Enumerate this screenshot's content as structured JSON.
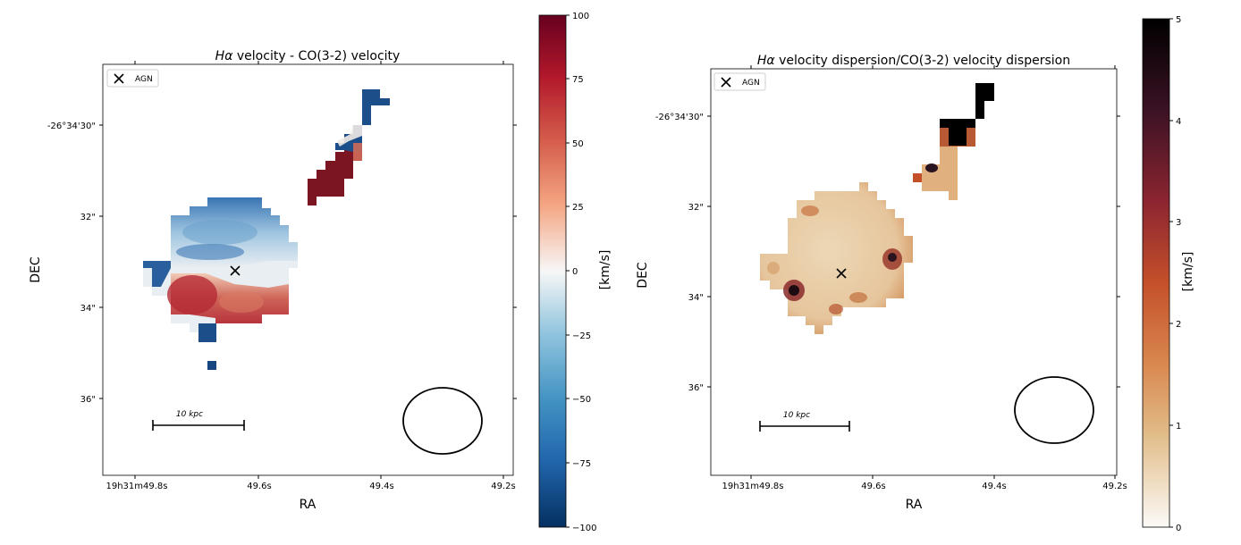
{
  "panels": [
    {
      "title": "Hα velocity - CO(3-2) velocity",
      "title_math": "Hα",
      "title_rest": " velocity - CO(3-2) velocity",
      "xlabel": "RA",
      "ylabel": "DEC",
      "xticks": [
        "19h31m49.8s",
        "49.6s",
        "49.4s",
        "49.2s"
      ],
      "yticks": [
        "-26°34'30\"",
        "32\"",
        "34\"",
        "36\""
      ],
      "legend_label": "AGN",
      "scalebar_label": "10 kpc",
      "colorbar": {
        "label": "[km/s]",
        "ticks": [
          "100",
          "75",
          "50",
          "25",
          "0",
          "−25",
          "−50",
          "−75",
          "−100"
        ],
        "colormap": "RdBu_r",
        "range": [
          -100,
          100
        ]
      }
    },
    {
      "title": "Hα velocity dispersion/CO(3-2) velocity dispersion",
      "title_math": "Hα",
      "title_rest": " velocity dispersion/CO(3-2) velocity dispersion",
      "xlabel": "RA",
      "ylabel": "DEC",
      "xticks": [
        "19h31m49.8s",
        "49.6s",
        "49.4s",
        "49.2s"
      ],
      "yticks": [
        "-26°34'30\"",
        "32\"",
        "34\"",
        "36\""
      ],
      "legend_label": "AGN",
      "scalebar_label": "10 kpc",
      "colorbar": {
        "label": "[km/s]",
        "ticks": [
          "5",
          "4",
          "3",
          "2",
          "1",
          "0"
        ],
        "colormap": "warm sequential (white to black)",
        "range": [
          0,
          5
        ]
      }
    }
  ],
  "chart_data": [
    {
      "type": "heatmap",
      "title": "Hα velocity - CO(3-2) velocity",
      "xlabel": "RA",
      "ylabel": "DEC",
      "quantity": "Hα velocity − CO(3-2) velocity",
      "units": "km/s",
      "color_range": [
        -100,
        100
      ],
      "x_tick_labels": [
        "19h31m49.8s",
        "49.6s",
        "49.4s",
        "49.2s"
      ],
      "y_tick_labels": [
        "-26°34'30\"",
        "32\"",
        "34\"",
        "36\""
      ],
      "marker": {
        "label": "AGN",
        "symbol": "x"
      },
      "scalebar": "10 kpc"
    },
    {
      "type": "heatmap",
      "title": "Hα velocity dispersion/CO(3-2) velocity dispersion",
      "xlabel": "RA",
      "ylabel": "DEC",
      "quantity": "Hα velocity dispersion / CO(3-2) velocity dispersion",
      "units": "km/s",
      "color_range": [
        0,
        5
      ],
      "x_tick_labels": [
        "19h31m49.8s",
        "49.6s",
        "49.4s",
        "49.2s"
      ],
      "y_tick_labels": [
        "-26°34'30\"",
        "32\"",
        "34\"",
        "36\""
      ],
      "marker": {
        "label": "AGN",
        "symbol": "x"
      },
      "scalebar": "10 kpc"
    }
  ]
}
